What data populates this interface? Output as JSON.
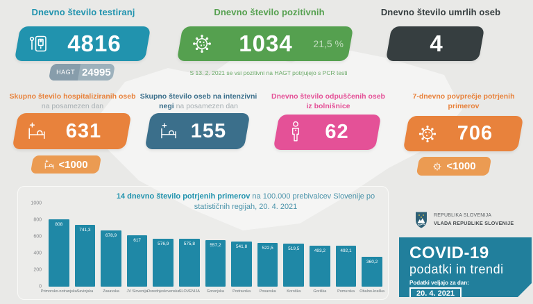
{
  "colors": {
    "background": "#e9e9e7",
    "teal": "#2193ae",
    "green": "#55a04f",
    "dark": "#363e40",
    "orange": "#e8823c",
    "orangeLight": "#eb9b52",
    "slate": "#3b6f8b",
    "pink": "#e45197",
    "badgeGray": "#9db1bc",
    "badgeGrayDark": "#879dab",
    "bar": "#1f88a6",
    "noteGreen": "#6caa69",
    "titleGray": "#a7afb3",
    "covidBox": "#217f9c"
  },
  "top": {
    "tests": {
      "title": "Dnevno število testiranj",
      "value": "4816",
      "badge_label": "HAGT",
      "badge_value": "24995"
    },
    "positive": {
      "title": "Dnevno število pozitivnih",
      "value": "1034",
      "percent": "21,5 %",
      "note": "S 13. 2. 2021 se vsi pozitivni na HAGT potrjujejo s PCR testi"
    },
    "deaths": {
      "title": "Dnevno število umrlih oseb",
      "value": "4"
    }
  },
  "mid": {
    "hospitalized": {
      "title": "Skupno število hospitaliziranih oseb",
      "title_gray": "na posamezen dan",
      "value": "631",
      "badge_value": "<1000"
    },
    "icu": {
      "title": "Skupno število oseb na intenzivni negi",
      "title_gray": "na posamezen dan",
      "value": "155"
    },
    "discharged": {
      "title": "Dnevno število odpuščenih oseb iz bolnišnice",
      "value": "62"
    },
    "avg7": {
      "title": "7-dnevno povprečje potrjenih primerov",
      "value": "706",
      "badge_value": "<1000"
    }
  },
  "chart_data": {
    "type": "bar",
    "title_bold": "14 dnevno število potrjenih primerov",
    "title_rest": " na 100.000 prebivalcev Slovenije po statističnih regijah, 20. 4. 2021",
    "categories": [
      "Primorsko-notranjska",
      "Savinjska",
      "Zasavska",
      "JV Slovenija",
      "Osrednjeslovenska",
      "SLOVENIJA",
      "Gorenjska",
      "Podravska",
      "Posavska",
      "Koroška",
      "Goriška",
      "Pomurska",
      "Obalno-kraška"
    ],
    "values": [
      808,
      741.3,
      678.9,
      617,
      576.9,
      575.8,
      557.2,
      541.8,
      522.5,
      519.5,
      493.2,
      492.1,
      360.2
    ],
    "value_labels": [
      "808",
      "741,3",
      "678,9",
      "617",
      "576,9",
      "575,8",
      "557,2",
      "541,8",
      "522,5",
      "519,5",
      "493,2",
      "492,1",
      "360,2"
    ],
    "xlabel": "",
    "ylabel": "",
    "ylim": [
      0,
      1000
    ],
    "yticks": [
      1000,
      800,
      600,
      400,
      200,
      0
    ],
    "grid": false,
    "legend": false,
    "bar_color": "#1f88a6"
  },
  "footer": {
    "gov_line1": "REPUBLIKA SLOVENIJA",
    "gov_line2": "VLADA REPUBLIKE SLOVENIJE",
    "covid_title": "COVID-19",
    "covid_subtitle": "podatki in trendi",
    "date_label": "Podatki veljajo za dan:",
    "date_value": "20. 4. 2021"
  }
}
